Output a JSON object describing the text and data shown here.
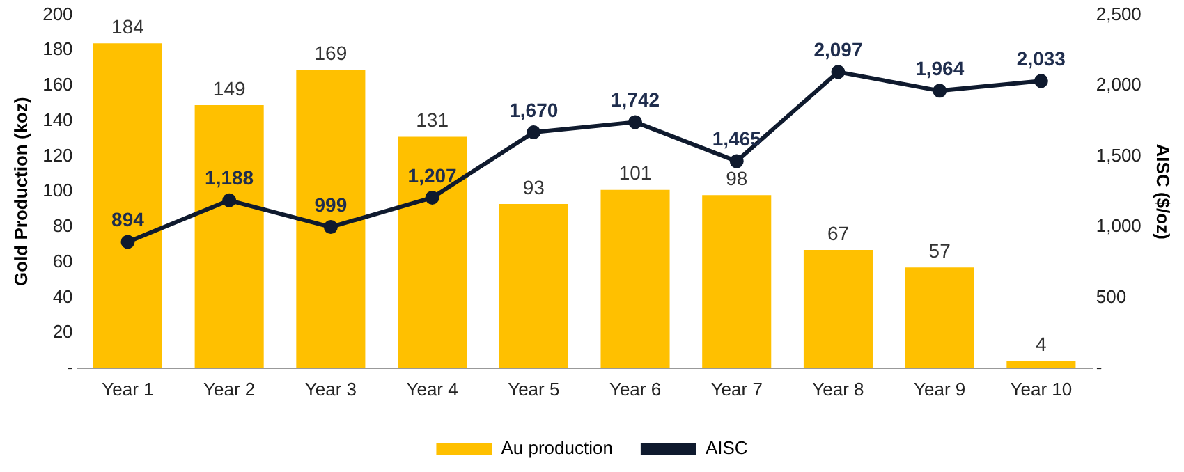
{
  "chart_data": {
    "type": "bar",
    "categories": [
      "Year 1",
      "Year 2",
      "Year 3",
      "Year 4",
      "Year 5",
      "Year 6",
      "Year 7",
      "Year 8",
      "Year 9",
      "Year 10"
    ],
    "series": [
      {
        "name": "Au production",
        "color": "#ffc000",
        "values": [
          184,
          149,
          169,
          131,
          93,
          101,
          98,
          67,
          57,
          4
        ]
      },
      {
        "name": "AISC",
        "type": "line",
        "axis": "y2",
        "color": "#0f1a2e",
        "values": [
          894,
          1188,
          999,
          1207,
          1670,
          1742,
          1465,
          2097,
          1964,
          2033
        ],
        "value_labels": [
          "894",
          "1,188",
          "999",
          "1,207",
          "1,670",
          "1,742",
          "1,465",
          "2,097",
          "1,964",
          "2,033"
        ]
      }
    ],
    "ylabel": "Gold Production (koz)",
    "y2label": "AISC ($/oz)",
    "ylim": [
      0,
      200
    ],
    "yticks": [
      {
        "value": 0,
        "label": "-"
      },
      20,
      40,
      60,
      80,
      100,
      120,
      140,
      160,
      180,
      200
    ],
    "y2lim": [
      0,
      2500
    ],
    "y2ticks": [
      {
        "value": 0,
        "label": "-"
      },
      500,
      {
        "value": 1000,
        "label": "1,000"
      },
      {
        "value": 1500,
        "label": "1,500"
      },
      {
        "value": 2000,
        "label": "2,000"
      },
      {
        "value": 2500,
        "label": "2,500"
      }
    ],
    "data_labels": true,
    "legend": "bottom",
    "marker": "circle",
    "line_style": "solid",
    "grid": false
  }
}
